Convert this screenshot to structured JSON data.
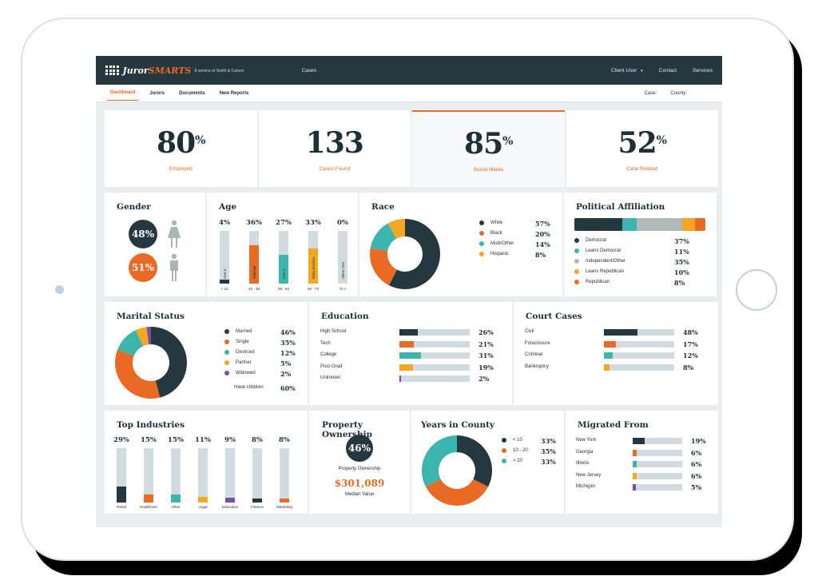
{
  "colors": {
    "dark": "#26383f",
    "orange": "#e86a24",
    "teal": "#3bb5ad",
    "yellow": "#f5a623",
    "gray": "#b0b8bc",
    "purple": "#7b4fa0",
    "track": "#d2dbdf"
  },
  "header": {
    "brand_juror": "Juror",
    "brand_smarts": "SMARTS",
    "tagline": "A service of Smith & Carson",
    "cases": "Cases",
    "user": "Client User",
    "contact": "Contact",
    "services": "Services"
  },
  "subnav": {
    "tabs": [
      "Dashboard",
      "Jurors",
      "Documents",
      "New Reports"
    ],
    "case_label": "Case:",
    "county_label": "County:"
  },
  "stats": [
    {
      "value": "80",
      "unit": "%",
      "label": "Employed"
    },
    {
      "value": "133",
      "unit": "",
      "label": "Cases Found"
    },
    {
      "value": "85",
      "unit": "%",
      "label": "Social Media"
    },
    {
      "value": "52",
      "unit": "%",
      "label": "Case Related"
    }
  ],
  "gender": {
    "title": "Gender",
    "female": "48%",
    "male": "51%"
  },
  "age": {
    "title": "Age",
    "bars": [
      {
        "pct": "4%",
        "name": "Gen Z",
        "range": "< 23",
        "value": 4,
        "color": "dark"
      },
      {
        "pct": "36%",
        "name": "Millenial",
        "range": "23 - 38",
        "value": 36,
        "color": "orange"
      },
      {
        "pct": "27%",
        "name": "Gen X",
        "range": "39 - 54",
        "value": 27,
        "color": "teal"
      },
      {
        "pct": "33%",
        "name": "Baby Boomer",
        "range": "55 - 73",
        "value": 33,
        "color": "yellow"
      },
      {
        "pct": "0%",
        "name": "Silent Gen",
        "range": "73 >",
        "value": 0,
        "color": "gray"
      }
    ]
  },
  "race": {
    "title": "Race",
    "items": [
      {
        "label": "White",
        "pct": "57%",
        "value": 57,
        "color": "dark"
      },
      {
        "label": "Black",
        "pct": "20%",
        "value": 20,
        "color": "orange"
      },
      {
        "label": "Multi/Other",
        "pct": "14%",
        "value": 14,
        "color": "teal"
      },
      {
        "label": "Hispanic",
        "pct": "8%",
        "value": 8,
        "color": "yellow"
      }
    ]
  },
  "political": {
    "title": "Political Affiliation",
    "items": [
      {
        "label": "Democrat",
        "pct": "37%",
        "value": 37,
        "color": "dark"
      },
      {
        "label": "Leans Democrat",
        "pct": "11%",
        "value": 11,
        "color": "teal"
      },
      {
        "label": "Independent/Other",
        "pct": "35%",
        "value": 35,
        "color": "gray"
      },
      {
        "label": "Leans Republican",
        "pct": "10%",
        "value": 10,
        "color": "yellow"
      },
      {
        "label": "Republican",
        "pct": "8%",
        "value": 8,
        "color": "orange"
      }
    ]
  },
  "marital": {
    "title": "Marital Status",
    "items": [
      {
        "label": "Married",
        "pct": "46%",
        "value": 46,
        "color": "dark"
      },
      {
        "label": "Single",
        "pct": "35%",
        "value": 35,
        "color": "orange"
      },
      {
        "label": "Divorced",
        "pct": "12%",
        "value": 12,
        "color": "teal"
      },
      {
        "label": "Partner",
        "pct": "5%",
        "value": 5,
        "color": "yellow"
      },
      {
        "label": "Widowed",
        "pct": "2%",
        "value": 2,
        "color": "purple"
      }
    ],
    "children_label": "Have children",
    "children_pct": "60%"
  },
  "education": {
    "title": "Education",
    "items": [
      {
        "label": "High School",
        "pct": "26%",
        "value": 26,
        "color": "dark"
      },
      {
        "label": "Tech",
        "pct": "21%",
        "value": 21,
        "color": "orange"
      },
      {
        "label": "College",
        "pct": "31%",
        "value": 31,
        "color": "teal"
      },
      {
        "label": "Post-Grad",
        "pct": "19%",
        "value": 19,
        "color": "yellow"
      },
      {
        "label": "Unknown",
        "pct": "2%",
        "value": 2,
        "color": "purple"
      }
    ]
  },
  "court": {
    "title": "Court Cases",
    "items": [
      {
        "label": "Civil",
        "pct": "48%",
        "value": 48,
        "color": "dark"
      },
      {
        "label": "Foreclosure",
        "pct": "17%",
        "value": 17,
        "color": "orange"
      },
      {
        "label": "Criminal",
        "pct": "12%",
        "value": 12,
        "color": "teal"
      },
      {
        "label": "Bankruptcy",
        "pct": "8%",
        "value": 8,
        "color": "yellow"
      }
    ]
  },
  "industries": {
    "title": "Top Industries",
    "bars": [
      {
        "pct": "29%",
        "label": "Retail",
        "value": 29,
        "color": "dark"
      },
      {
        "pct": "15%",
        "label": "Healthcare",
        "value": 15,
        "color": "orange"
      },
      {
        "pct": "15%",
        "label": "Other",
        "value": 15,
        "color": "teal"
      },
      {
        "pct": "11%",
        "label": "Legal",
        "value": 11,
        "color": "yellow"
      },
      {
        "pct": "9%",
        "label": "Education",
        "value": 9,
        "color": "purple"
      },
      {
        "pct": "8%",
        "label": "Finance",
        "value": 8,
        "color": "dark"
      },
      {
        "pct": "8%",
        "label": "Marketing",
        "value": 8,
        "color": "orange"
      }
    ]
  },
  "property": {
    "title": "Property Ownership",
    "pct": "46%",
    "pct_label": "Property Ownership",
    "median": "$301,089",
    "median_label": "Median Value"
  },
  "years": {
    "title": "Years in County",
    "items": [
      {
        "label": "< 10",
        "pct": "33%",
        "value": 33,
        "color": "dark"
      },
      {
        "label": "10 - 20",
        "pct": "35%",
        "value": 35,
        "color": "orange"
      },
      {
        "label": "> 20",
        "pct": "33%",
        "value": 33,
        "color": "teal"
      }
    ]
  },
  "migrated": {
    "title": "Migrated From",
    "items": [
      {
        "label": "New York",
        "pct": "19%",
        "value": 19,
        "color": "dark"
      },
      {
        "label": "Georgia",
        "pct": "6%",
        "value": 6,
        "color": "orange"
      },
      {
        "label": "Illinois",
        "pct": "6%",
        "value": 6,
        "color": "teal"
      },
      {
        "label": "New Jersey",
        "pct": "6%",
        "value": 6,
        "color": "yellow"
      },
      {
        "label": "Michigan",
        "pct": "5%",
        "value": 5,
        "color": "purple"
      }
    ]
  }
}
